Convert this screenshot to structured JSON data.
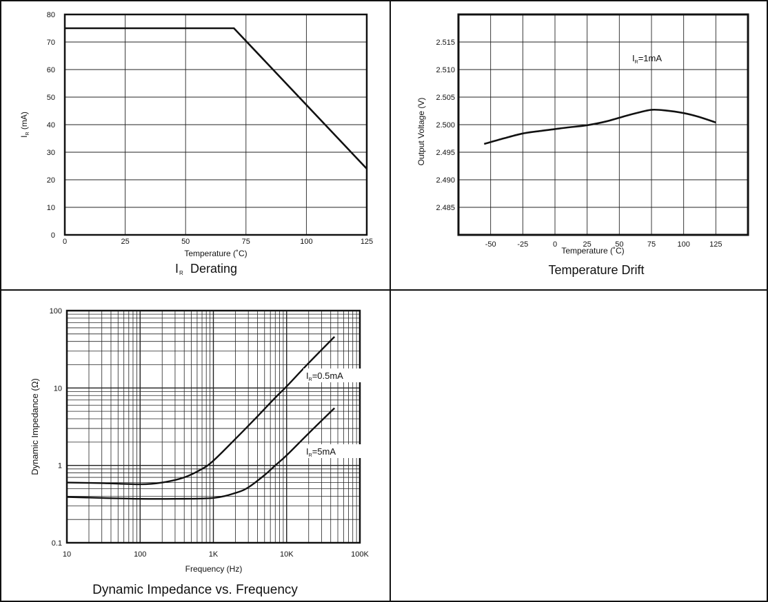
{
  "panels": {
    "derating_title": "Derating",
    "drift_title": "Temperature Drift",
    "impedance_title": "Dynamic Impedance vs. Frequency"
  },
  "chart_data": [
    {
      "type": "line",
      "title": "IR Derating",
      "xlabel": "Temperature (˚C)",
      "ylabel": "(mA)",
      "ylabel_symbol": "I",
      "ylabel_sub": "R",
      "xlim": [
        0,
        125
      ],
      "ylim": [
        0,
        80
      ],
      "xticks": [
        0,
        25,
        50,
        75,
        100,
        125
      ],
      "yticks": [
        0,
        10,
        20,
        30,
        40,
        50,
        60,
        70,
        80
      ],
      "grid": true,
      "series": [
        {
          "x": [
            0,
            70,
            125
          ],
          "y": [
            75,
            75,
            24
          ]
        }
      ]
    },
    {
      "type": "line",
      "title": "Temperature Drift",
      "xlabel": "Temperature (˚C)",
      "ylabel": "Output Voltage (V)",
      "xlim": [
        -75,
        150
      ],
      "ylim": [
        2.48,
        2.52
      ],
      "xticks": [
        -50,
        -25,
        0,
        25,
        50,
        75,
        100,
        125
      ],
      "yticks": [
        "2.485",
        "2.490",
        "2.495",
        "2.500",
        "2.505",
        "2.510",
        "2.515"
      ],
      "grid": true,
      "annotations": [
        {
          "symbol": "I",
          "sub": "R",
          "text": "=1mA"
        }
      ],
      "series": [
        {
          "x": [
            -55,
            -40,
            -25,
            -10,
            0,
            10,
            25,
            40,
            55,
            65,
            75,
            85,
            100,
            112,
            125
          ],
          "y": [
            2.4965,
            2.4975,
            2.4984,
            2.4989,
            2.4992,
            2.4995,
            2.4999,
            2.5006,
            2.5016,
            2.5022,
            2.5027,
            2.5026,
            2.5021,
            2.5014,
            2.5004
          ]
        }
      ]
    },
    {
      "type": "line",
      "title": "Dynamic Impedance vs. Frequency",
      "xlabel": "Frequency (Hz)",
      "ylabel": "Dynamic Impedance (Ω)",
      "x_scale": "log",
      "y_scale": "log",
      "xlim": [
        10,
        100000
      ],
      "ylim": [
        0.1,
        100
      ],
      "xticks": [
        "10",
        "100",
        "1K",
        "10K",
        "100K"
      ],
      "yticks": [
        "0.1",
        "1",
        "10",
        "100"
      ],
      "grid": true,
      "series": [
        {
          "label_symbol": "I",
          "label_sub": "R",
          "label_text": "=0.5mA",
          "x": [
            10,
            30,
            100,
            200,
            400,
            700,
            1000,
            2000,
            4000,
            7000,
            10000,
            20000,
            45000
          ],
          "y": [
            0.6,
            0.59,
            0.57,
            0.6,
            0.7,
            0.9,
            1.15,
            2.2,
            4.3,
            7.5,
            10.5,
            21,
            46
          ]
        },
        {
          "label_symbol": "I",
          "label_sub": "R",
          "label_text": "=5mA",
          "x": [
            10,
            30,
            100,
            300,
            1000,
            2000,
            3000,
            5000,
            7000,
            10000,
            20000,
            45000
          ],
          "y": [
            0.39,
            0.38,
            0.37,
            0.37,
            0.38,
            0.44,
            0.52,
            0.75,
            1.0,
            1.35,
            2.6,
            5.5
          ]
        }
      ]
    }
  ]
}
